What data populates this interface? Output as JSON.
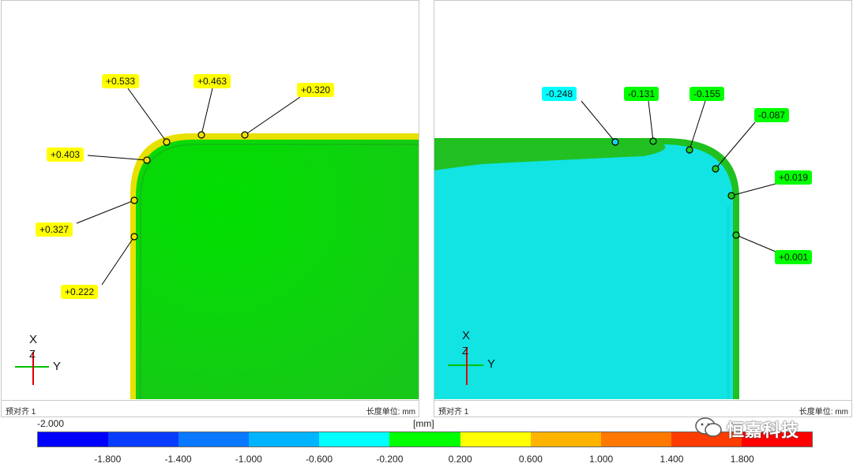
{
  "left_panel": {
    "status_left": "预对齐 1",
    "status_right": "长度单位: mm",
    "callouts": [
      "+0.533",
      "+0.463",
      "+0.320",
      "+0.403",
      "+0.327",
      "+0.222"
    ],
    "callout_color": "#ffff00",
    "surface_color": "#1ed21e",
    "edge_color": "#f0e40a",
    "axis": {
      "x": "X",
      "z": "Z",
      "y": "Y"
    }
  },
  "right_panel": {
    "status_left": "预对齐 1",
    "status_right": "长度单位: mm",
    "callouts": [
      "-0.248",
      "-0.131",
      "-0.155",
      "-0.087",
      "+0.019",
      "+0.001"
    ],
    "callout_colors": [
      "#00ffff",
      "#00ff00",
      "#00ff00",
      "#00ff00",
      "#00ff00",
      "#00ff00"
    ],
    "surface_color": "#10e5e5",
    "edge_color": "#22cc22",
    "axis": {
      "x": "X",
      "z": "Z",
      "y": "Y"
    }
  },
  "scale": {
    "min_label": "-2.000",
    "unit": "[mm]",
    "ticks": [
      "-1.800",
      "-1.400",
      "-1.000",
      "-0.600",
      "-0.200",
      "0.200",
      "0.600",
      "1.000",
      "1.400",
      "1.800"
    ],
    "colors": [
      "#0000ff",
      "#0a3cff",
      "#0a78ff",
      "#00b4ff",
      "#00ffff",
      "#00ff00",
      "#ffff00",
      "#ffb400",
      "#ff7800",
      "#ff3c00",
      "#ff0000"
    ]
  },
  "watermark": {
    "text": "恒嘉科技"
  }
}
